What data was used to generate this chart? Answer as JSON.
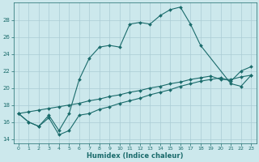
{
  "xlabel": "Humidex (Indice chaleur)",
  "bg_color": "#cce8ec",
  "grid_color": "#aaccd4",
  "line_color": "#1a6b6b",
  "xlim": [
    -0.5,
    23.5
  ],
  "ylim": [
    13.5,
    30.0
  ],
  "xticks": [
    0,
    1,
    2,
    3,
    4,
    5,
    6,
    7,
    8,
    9,
    10,
    11,
    12,
    13,
    14,
    15,
    16,
    17,
    18,
    19,
    20,
    21,
    22,
    23
  ],
  "yticks": [
    14,
    16,
    18,
    20,
    22,
    24,
    26,
    28
  ],
  "line1_x": [
    0,
    1,
    2,
    3,
    4,
    5,
    6,
    7,
    8,
    9,
    10,
    11,
    12,
    13,
    14,
    15,
    16,
    17,
    18,
    21,
    22,
    23
  ],
  "line1_y": [
    17.0,
    16.0,
    15.5,
    16.8,
    15.0,
    17.0,
    21.0,
    23.5,
    24.8,
    25.0,
    24.8,
    27.5,
    27.7,
    27.5,
    28.5,
    29.2,
    29.5,
    27.5,
    25.0,
    20.5,
    20.2,
    21.5
  ],
  "line2_x": [
    0,
    1,
    2,
    3,
    4,
    5,
    6,
    7,
    8,
    9,
    10,
    11,
    12,
    13,
    14,
    15,
    16,
    17,
    18,
    19,
    20,
    21,
    22,
    23
  ],
  "line2_y": [
    17.0,
    17.2,
    17.4,
    17.6,
    17.8,
    18.0,
    18.2,
    18.5,
    18.7,
    19.0,
    19.2,
    19.5,
    19.7,
    20.0,
    20.2,
    20.5,
    20.7,
    21.0,
    21.2,
    21.4,
    21.0,
    21.0,
    21.3,
    21.5
  ],
  "line3_x": [
    0,
    1,
    2,
    3,
    4,
    5,
    6,
    7,
    8,
    9,
    10,
    11,
    12,
    13,
    14,
    15,
    16,
    17,
    18,
    19,
    20,
    21,
    22,
    23
  ],
  "line3_y": [
    17.0,
    16.0,
    15.5,
    16.5,
    14.5,
    15.0,
    16.8,
    17.0,
    17.5,
    17.8,
    18.2,
    18.5,
    18.8,
    19.2,
    19.5,
    19.8,
    20.2,
    20.5,
    20.8,
    21.0,
    21.2,
    20.8,
    22.0,
    22.5
  ]
}
